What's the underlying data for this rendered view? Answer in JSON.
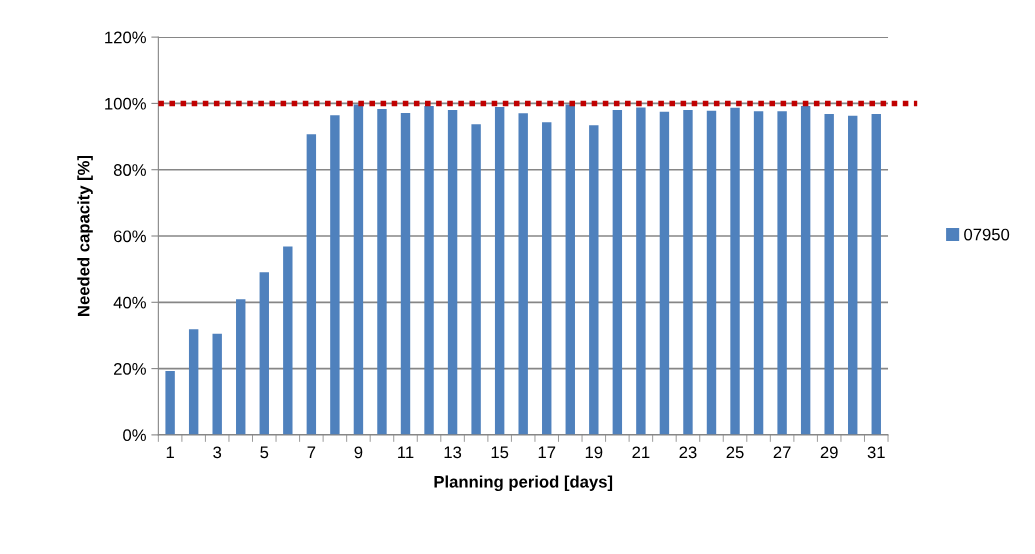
{
  "chart_data": {
    "type": "bar",
    "categories": [
      "1",
      null,
      "3",
      null,
      "5",
      null,
      "7",
      null,
      "9",
      null,
      "11",
      null,
      "13",
      null,
      "15",
      null,
      "17",
      null,
      "19",
      null,
      "21",
      null,
      "23",
      null,
      "25",
      null,
      "27",
      null,
      "29",
      null,
      "31"
    ],
    "series": [
      {
        "name": "07950",
        "color": "#4f81bd",
        "values": [
          19.3,
          31.9,
          30.5,
          40.9,
          49.1,
          56.8,
          90.7,
          96.4,
          99.7,
          98.3,
          97.1,
          99.2,
          98,
          93.7,
          98.9,
          97,
          94.3,
          99.7,
          93.4,
          98,
          98.8,
          97.5,
          98,
          97.8,
          98.7,
          97.6,
          97.6,
          99.2,
          96.8,
          96.3,
          96.8
        ]
      }
    ],
    "xlabel": "Planning period [days]",
    "ylabel": "Needed capacity [%]",
    "ylim": [
      0,
      120
    ],
    "yticks": [
      {
        "value": 0,
        "label": "0%"
      },
      {
        "value": 20,
        "label": "20%"
      },
      {
        "value": 40,
        "label": "40%"
      },
      {
        "value": 60,
        "label": "60%"
      },
      {
        "value": 80,
        "label": "80%"
      },
      {
        "value": 100,
        "label": "100%"
      },
      {
        "value": 120,
        "label": "120%"
      }
    ],
    "ref_lines": [
      {
        "axis": "y",
        "value": 100,
        "color": "#c00000",
        "line_style": "dotted"
      }
    ],
    "grid": "y",
    "legend": "right"
  }
}
